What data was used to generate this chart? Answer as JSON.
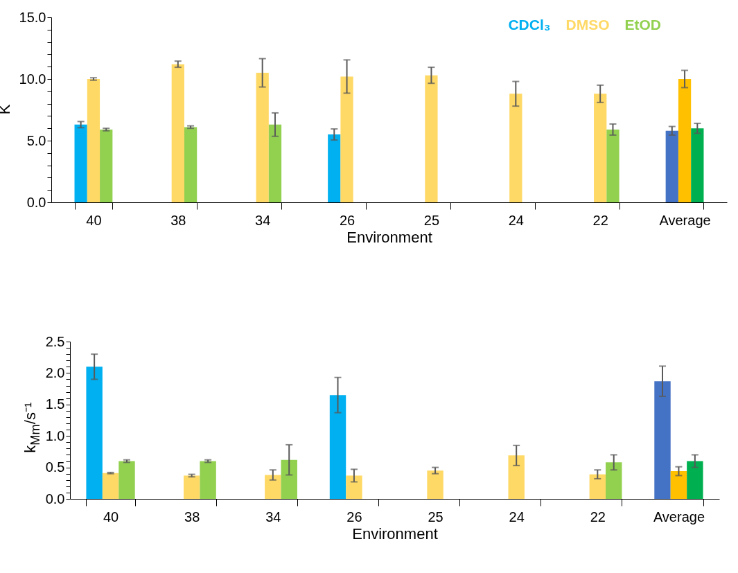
{
  "chart_data": [
    {
      "type": "bar",
      "categories": [
        "40",
        "38",
        "34",
        "26",
        "25",
        "24",
        "22",
        "Average"
      ],
      "xlabel": "Environment",
      "ylabel": "K",
      "ylim": [
        0,
        15
      ],
      "yticks": [
        {
          "value": 0,
          "label": "0.0"
        },
        {
          "value": 1,
          "label": null
        },
        {
          "value": 2,
          "label": null
        },
        {
          "value": 3,
          "label": null
        },
        {
          "value": 4,
          "label": null
        },
        {
          "value": 5,
          "label": "5.0"
        },
        {
          "value": 6,
          "label": null
        },
        {
          "value": 7,
          "label": null
        },
        {
          "value": 8,
          "label": null
        },
        {
          "value": 9,
          "label": null
        },
        {
          "value": 10,
          "label": "10.0"
        },
        {
          "value": 11,
          "label": null
        },
        {
          "value": 12,
          "label": null
        },
        {
          "value": 13,
          "label": null
        },
        {
          "value": 14,
          "label": null
        },
        {
          "value": 15,
          "label": "15.0"
        }
      ],
      "legend": "top right",
      "series": [
        {
          "name": "CDCl₃",
          "color": "#00b0f0",
          "colors": [
            "#00b0f0",
            null,
            null,
            "#00b0f0",
            null,
            null,
            null,
            "#4472c4"
          ],
          "values": [
            6.3,
            null,
            null,
            5.5,
            null,
            null,
            null,
            5.8
          ],
          "errors": [
            0.25,
            null,
            null,
            0.45,
            null,
            null,
            null,
            0.35
          ]
        },
        {
          "name": "DMSO",
          "color": "#ffd966",
          "colors": [
            "#ffd966",
            "#ffd966",
            "#ffd966",
            "#ffd966",
            "#ffd966",
            "#ffd966",
            "#ffd966",
            "#ffc000"
          ],
          "values": [
            10.0,
            11.2,
            10.5,
            10.2,
            10.3,
            8.8,
            8.8,
            10.0
          ],
          "errors": [
            0.1,
            0.25,
            1.15,
            1.35,
            0.65,
            1.0,
            0.7,
            0.7
          ]
        },
        {
          "name": "EtOD",
          "color": "#92d050",
          "colors": [
            "#92d050",
            "#92d050",
            "#92d050",
            null,
            null,
            null,
            "#92d050",
            "#00b050"
          ],
          "values": [
            5.9,
            6.1,
            6.3,
            null,
            null,
            null,
            5.9,
            6.0
          ],
          "errors": [
            0.1,
            0.1,
            0.95,
            null,
            null,
            null,
            0.45,
            0.4
          ]
        }
      ]
    },
    {
      "type": "bar",
      "categories": [
        "40",
        "38",
        "34",
        "26",
        "25",
        "24",
        "22",
        "Average"
      ],
      "xlabel": "Environment",
      "ylabel": "k$_{Mm}$/s⁻¹",
      "ylim": [
        0,
        2.5
      ],
      "yticks": [
        {
          "value": 0,
          "label": "0.0"
        },
        {
          "value": 0.1,
          "label": null
        },
        {
          "value": 0.2,
          "label": null
        },
        {
          "value": 0.3,
          "label": null
        },
        {
          "value": 0.4,
          "label": null
        },
        {
          "value": 0.5,
          "label": "0.5"
        },
        {
          "value": 0.6,
          "label": null
        },
        {
          "value": 0.7,
          "label": null
        },
        {
          "value": 0.8,
          "label": null
        },
        {
          "value": 0.9,
          "label": null
        },
        {
          "value": 1,
          "label": "1.0"
        },
        {
          "value": 1.1,
          "label": null
        },
        {
          "value": 1.2,
          "label": null
        },
        {
          "value": 1.3,
          "label": null
        },
        {
          "value": 1.4,
          "label": null
        },
        {
          "value": 1.5,
          "label": "1.5"
        },
        {
          "value": 1.6,
          "label": null
        },
        {
          "value": 1.7,
          "label": null
        },
        {
          "value": 1.8,
          "label": null
        },
        {
          "value": 1.9,
          "label": null
        },
        {
          "value": 2,
          "label": "2.0"
        },
        {
          "value": 2.1,
          "label": null
        },
        {
          "value": 2.2,
          "label": null
        },
        {
          "value": 2.3,
          "label": null
        },
        {
          "value": 2.4,
          "label": null
        },
        {
          "value": 2.5,
          "label": "2.5"
        }
      ],
      "series": [
        {
          "colors": [
            "#00b0f0",
            null,
            null,
            "#00b0f0",
            null,
            null,
            null,
            "#4472c4"
          ],
          "values": [
            2.1,
            null,
            null,
            1.65,
            null,
            null,
            null,
            1.87
          ],
          "errors": [
            0.2,
            null,
            null,
            0.28,
            null,
            null,
            null,
            0.24
          ]
        },
        {
          "colors": [
            "#ffd966",
            "#ffd966",
            "#ffd966",
            "#ffd966",
            "#ffd966",
            "#ffd966",
            "#ffd966",
            "#ffc000"
          ],
          "values": [
            0.41,
            0.37,
            0.38,
            0.37,
            0.45,
            0.69,
            0.39,
            0.44
          ],
          "errors": [
            0.01,
            0.02,
            0.08,
            0.1,
            0.05,
            0.16,
            0.07,
            0.07
          ]
        },
        {
          "colors": [
            "#92d050",
            "#92d050",
            "#92d050",
            null,
            null,
            null,
            "#92d050",
            "#00b050"
          ],
          "values": [
            0.6,
            0.6,
            0.62,
            null,
            null,
            null,
            0.58,
            0.6
          ],
          "errors": [
            0.02,
            0.02,
            0.24,
            null,
            null,
            null,
            0.12,
            0.1
          ]
        }
      ]
    }
  ]
}
